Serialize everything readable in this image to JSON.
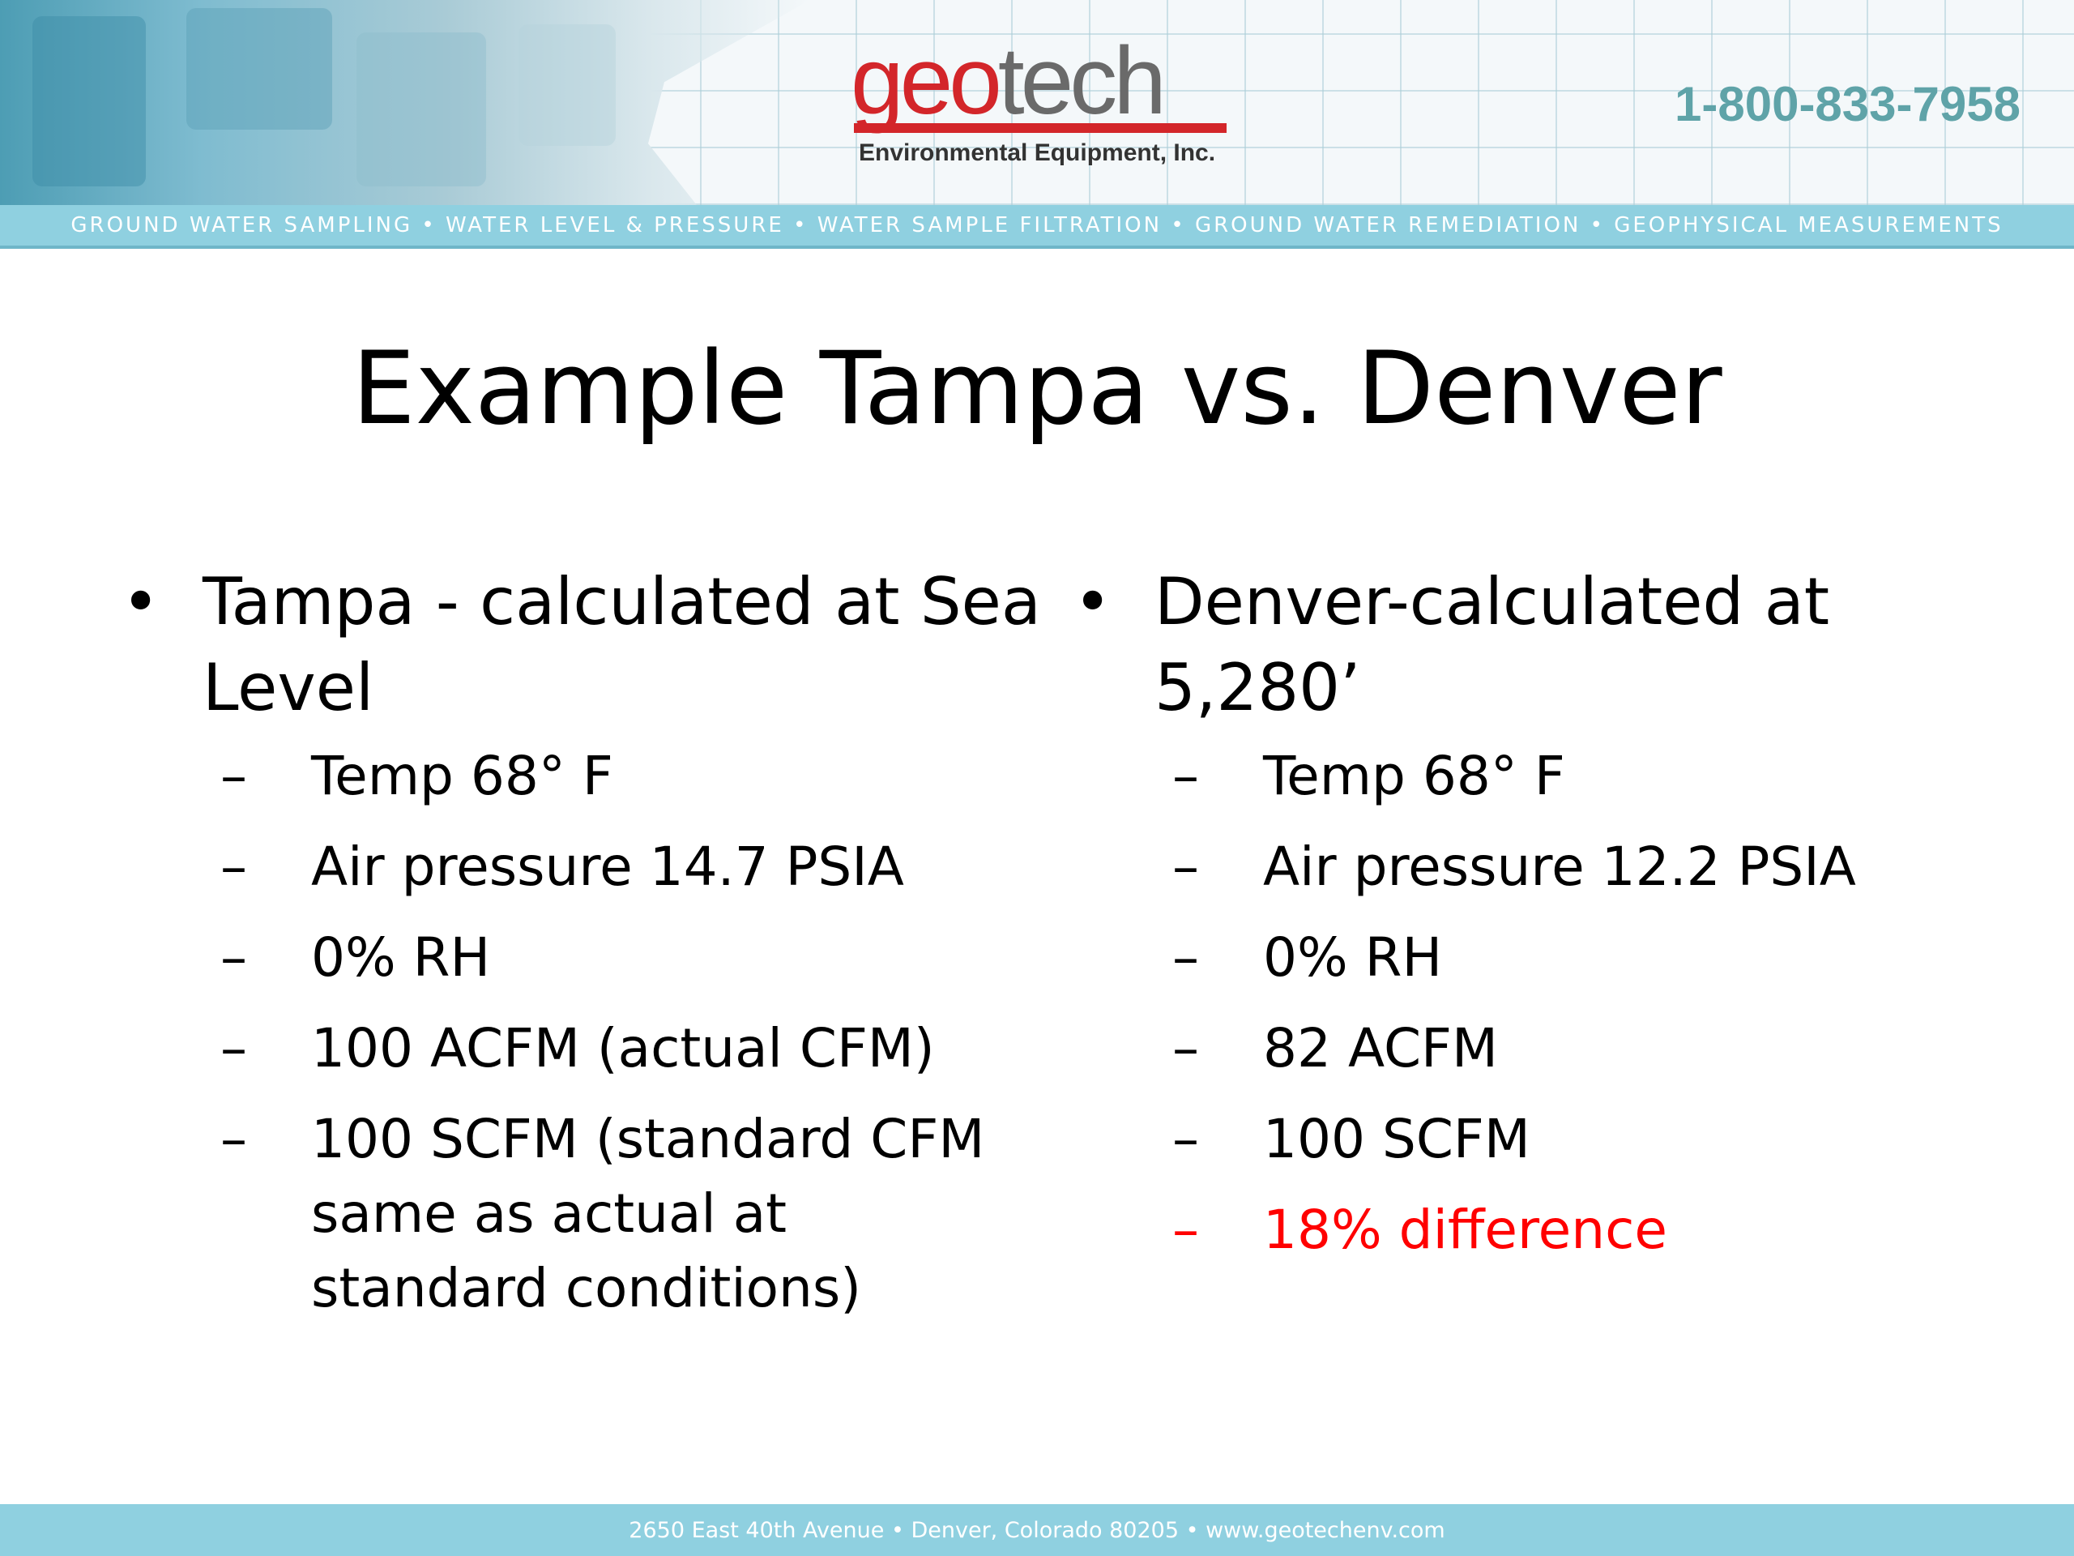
{
  "header": {
    "logo": {
      "geo": "geo",
      "tech": "tech",
      "subtitle": "Environmental Equipment, Inc."
    },
    "phone": "1-800-833-7958",
    "services": "GROUND WATER SAMPLING • WATER LEVEL & PRESSURE • WATER SAMPLE FILTRATION • GROUND WATER REMEDIATION • GEOPHYSICAL MEASUREMENTS"
  },
  "slide": {
    "title": "Example Tampa vs. Denver",
    "left": {
      "bullet_glyph": "•",
      "heading": "Tampa - calculated at Sea Level",
      "items": [
        "Temp 68° F",
        "Air pressure 14.7 PSIA",
        "0% RH",
        "100 ACFM (actual CFM)",
        "100 SCFM (standard CFM same as actual at standard conditions)"
      ]
    },
    "right": {
      "bullet_glyph": "•",
      "heading": "Denver-calculated at 5,280’",
      "items": [
        "Temp 68° F",
        "Air pressure 12.2 PSIA",
        "0% RH",
        "82 ACFM",
        "100 SCFM",
        "18% difference"
      ]
    },
    "dash_glyph": "–"
  },
  "footer": {
    "address": "2650 East 40th Avenue • Denver, Colorado 80205 • www.geotechenv.com"
  },
  "colors": {
    "brand_red": "#d3262a",
    "brand_teal": "#8fd0e0",
    "phone_teal": "#5fa3a8",
    "highlight_red": "#ff0000"
  }
}
